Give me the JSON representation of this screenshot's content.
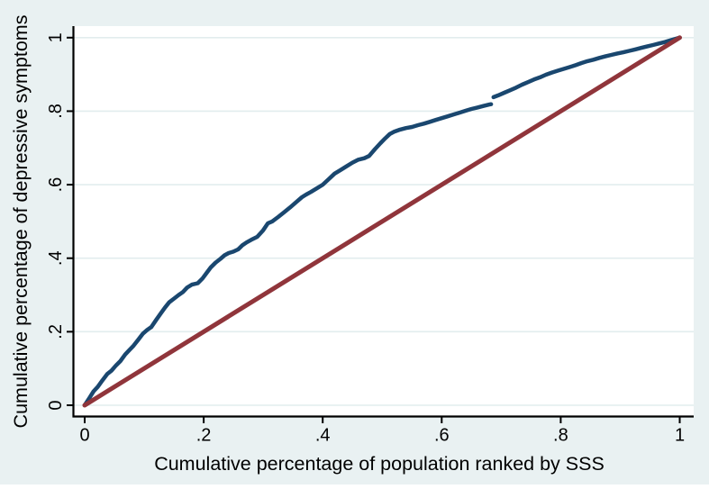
{
  "figure": {
    "background": "#E9F1F2",
    "plot_background": "#FFFFFF",
    "axis_color": "#000000",
    "grid_color": "#E2EDEE",
    "text_color": "#000000"
  },
  "chart_data": {
    "type": "line",
    "title": "",
    "xlabel": "Cumulative percentage of population ranked by SSS",
    "ylabel": "Cumulative percentage of depressive symptoms",
    "xlim": [
      0,
      1
    ],
    "ylim": [
      0,
      1
    ],
    "grid": "horizontal-only",
    "legend": "none",
    "x_ticks": [
      {
        "value": 0,
        "label": "0"
      },
      {
        "value": 0.2,
        "label": ".2"
      },
      {
        "value": 0.4,
        "label": ".4"
      },
      {
        "value": 0.6,
        "label": ".6"
      },
      {
        "value": 0.8,
        "label": ".8"
      },
      {
        "value": 1,
        "label": "1"
      }
    ],
    "y_ticks": [
      {
        "value": 0,
        "label": "0"
      },
      {
        "value": 0.2,
        "label": ".2"
      },
      {
        "value": 0.4,
        "label": ".4"
      },
      {
        "value": 0.6,
        "label": ".6"
      },
      {
        "value": 0.8,
        "label": ".8"
      },
      {
        "value": 1,
        "label": "1"
      }
    ],
    "series": [
      {
        "name": "concentration-curve",
        "color": "#1A476F",
        "width": 4.5,
        "segments": [
          [
            [
              0,
              0
            ],
            [
              0.008,
              0.02
            ],
            [
              0.015,
              0.038
            ],
            [
              0.022,
              0.05
            ],
            [
              0.03,
              0.068
            ],
            [
              0.038,
              0.085
            ],
            [
              0.045,
              0.094
            ],
            [
              0.052,
              0.107
            ],
            [
              0.06,
              0.12
            ],
            [
              0.068,
              0.138
            ],
            [
              0.075,
              0.15
            ],
            [
              0.082,
              0.162
            ],
            [
              0.09,
              0.178
            ],
            [
              0.098,
              0.195
            ],
            [
              0.105,
              0.205
            ],
            [
              0.112,
              0.213
            ],
            [
              0.12,
              0.232
            ],
            [
              0.128,
              0.25
            ],
            [
              0.135,
              0.266
            ],
            [
              0.142,
              0.28
            ],
            [
              0.15,
              0.29
            ],
            [
              0.158,
              0.3
            ],
            [
              0.165,
              0.308
            ],
            [
              0.172,
              0.32
            ],
            [
              0.18,
              0.328
            ],
            [
              0.19,
              0.332
            ],
            [
              0.198,
              0.345
            ],
            [
              0.205,
              0.36
            ],
            [
              0.212,
              0.375
            ],
            [
              0.22,
              0.388
            ],
            [
              0.228,
              0.398
            ],
            [
              0.235,
              0.408
            ],
            [
              0.242,
              0.414
            ],
            [
              0.25,
              0.418
            ],
            [
              0.258,
              0.424
            ],
            [
              0.265,
              0.435
            ],
            [
              0.272,
              0.443
            ],
            [
              0.28,
              0.45
            ],
            [
              0.29,
              0.458
            ],
            [
              0.3,
              0.476
            ],
            [
              0.308,
              0.495
            ],
            [
              0.315,
              0.5
            ],
            [
              0.325,
              0.512
            ],
            [
              0.335,
              0.525
            ],
            [
              0.345,
              0.538
            ],
            [
              0.355,
              0.552
            ],
            [
              0.365,
              0.566
            ],
            [
              0.372,
              0.573
            ],
            [
              0.38,
              0.58
            ],
            [
              0.39,
              0.59
            ],
            [
              0.4,
              0.6
            ],
            [
              0.41,
              0.615
            ],
            [
              0.42,
              0.63
            ],
            [
              0.43,
              0.64
            ],
            [
              0.44,
              0.65
            ],
            [
              0.45,
              0.66
            ],
            [
              0.46,
              0.668
            ],
            [
              0.47,
              0.672
            ],
            [
              0.478,
              0.678
            ],
            [
              0.488,
              0.697
            ],
            [
              0.497,
              0.713
            ],
            [
              0.505,
              0.726
            ],
            [
              0.513,
              0.738
            ],
            [
              0.52,
              0.744
            ],
            [
              0.53,
              0.75
            ],
            [
              0.54,
              0.754
            ],
            [
              0.55,
              0.757
            ],
            [
              0.56,
              0.762
            ],
            [
              0.57,
              0.766
            ],
            [
              0.58,
              0.771
            ],
            [
              0.59,
              0.776
            ],
            [
              0.6,
              0.781
            ],
            [
              0.61,
              0.786
            ],
            [
              0.62,
              0.791
            ],
            [
              0.63,
              0.796
            ],
            [
              0.64,
              0.801
            ],
            [
              0.65,
              0.806
            ],
            [
              0.66,
              0.81
            ],
            [
              0.67,
              0.814
            ],
            [
              0.68,
              0.818
            ],
            [
              0.683,
              0.819
            ]
          ],
          [
            [
              0.687,
              0.838
            ],
            [
              0.695,
              0.843
            ],
            [
              0.705,
              0.85
            ],
            [
              0.715,
              0.857
            ],
            [
              0.725,
              0.864
            ],
            [
              0.735,
              0.872
            ],
            [
              0.745,
              0.879
            ],
            [
              0.755,
              0.886
            ],
            [
              0.765,
              0.892
            ],
            [
              0.775,
              0.899
            ],
            [
              0.785,
              0.905
            ],
            [
              0.795,
              0.91
            ],
            [
              0.805,
              0.915
            ],
            [
              0.815,
              0.92
            ],
            [
              0.825,
              0.925
            ],
            [
              0.835,
              0.931
            ],
            [
              0.845,
              0.936
            ],
            [
              0.855,
              0.94
            ],
            [
              0.865,
              0.945
            ],
            [
              0.875,
              0.949
            ],
            [
              0.885,
              0.953
            ],
            [
              0.895,
              0.957
            ],
            [
              0.905,
              0.96
            ],
            [
              0.915,
              0.964
            ],
            [
              0.925,
              0.968
            ],
            [
              0.935,
              0.972
            ],
            [
              0.945,
              0.976
            ],
            [
              0.955,
              0.98
            ],
            [
              0.965,
              0.984
            ],
            [
              0.975,
              0.988
            ],
            [
              0.985,
              0.993
            ],
            [
              1,
              1
            ]
          ]
        ]
      },
      {
        "name": "line-of-equality",
        "color": "#90353B",
        "width": 5,
        "segments": [
          [
            [
              0,
              0
            ],
            [
              1,
              1
            ]
          ]
        ]
      }
    ]
  }
}
